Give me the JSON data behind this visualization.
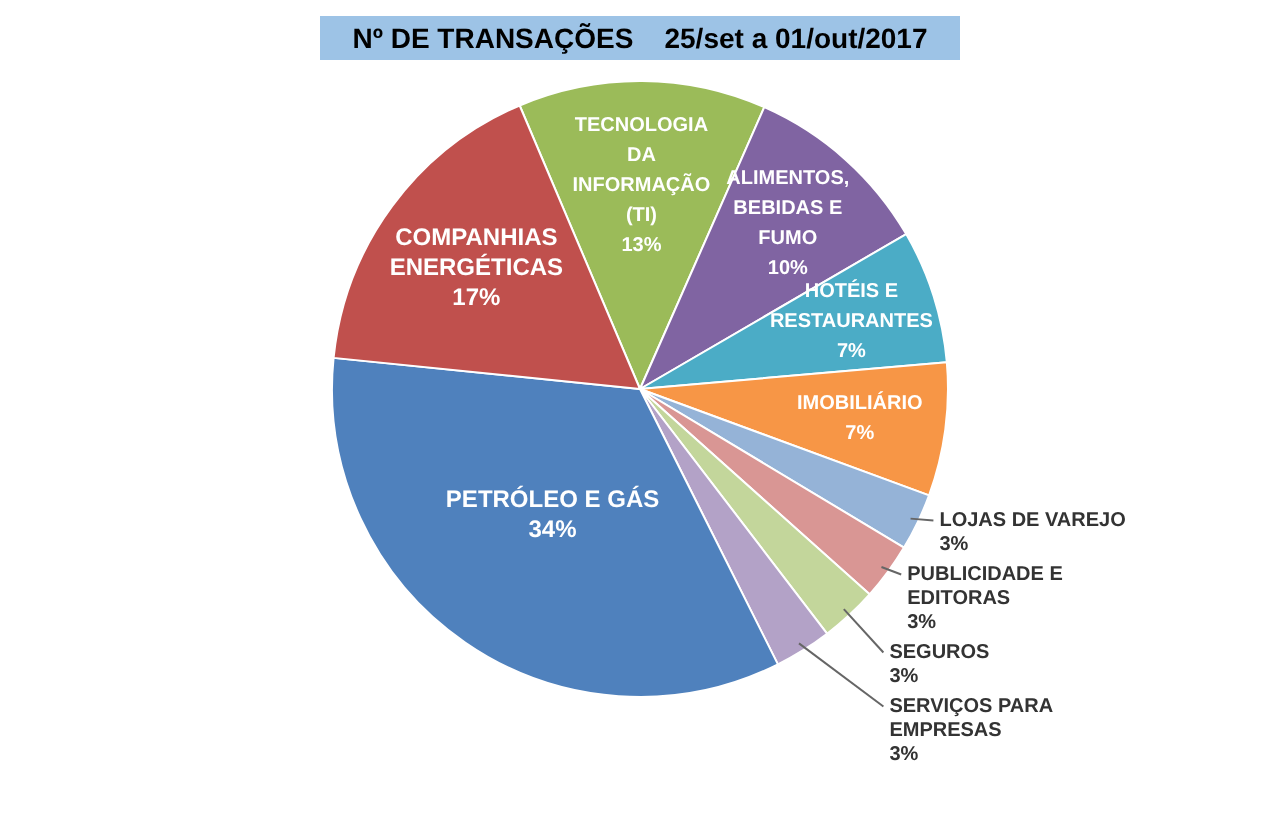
{
  "chart_data": {
    "type": "pie",
    "title": "Nº DE TRANSAÇÕES    25/set a 01/out/2017",
    "categories": [
      "TECNOLOGIA DA INFORMAÇÃO (TI)",
      "ALIMENTOS, BEBIDAS E FUMO",
      "HOTÉIS E RESTAURANTES",
      "IMOBILIÁRIO",
      "LOJAS DE VAREJO",
      "PUBLICIDADE E EDITORAS",
      "SEGUROS",
      "SERVIÇOS PARA EMPRESAS",
      "PETRÓLEO E GÁS",
      "COMPANHIAS ENERGÉTICAS"
    ],
    "values": [
      13,
      10,
      7,
      7,
      3,
      3,
      3,
      3,
      34,
      17
    ],
    "value_labels": [
      "13%",
      "10%",
      "7%",
      "7%",
      "3%",
      "3%",
      "3%",
      "3%",
      "34%",
      "17%"
    ],
    "colors": [
      "#9bbb59",
      "#8064a2",
      "#4bacc6",
      "#f79646",
      "#95b3d7",
      "#d99694",
      "#c3d69b",
      "#b3a2c7",
      "#4f81bd",
      "#c0504d"
    ],
    "legend": false
  }
}
